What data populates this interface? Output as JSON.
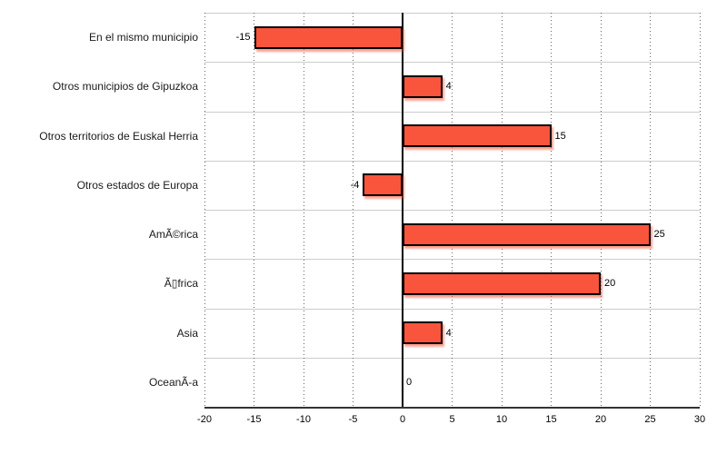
{
  "chart_data": {
    "type": "bar",
    "orientation": "horizontal",
    "title": "",
    "xlabel": "",
    "ylabel": "",
    "categories": [
      "En el mismo municipio",
      "Otros municipios de Gipuzkoa",
      "Otros territorios de Euskal Herria",
      "Otros estados de Europa",
      "AmÃ©rica",
      "Ã▯frica",
      "Asia",
      "OceanÃ-a"
    ],
    "values": [
      -15,
      4,
      15,
      -4,
      25,
      20,
      4,
      0
    ],
    "value_labels": [
      "-15",
      "4",
      "15",
      "-4",
      "25",
      "20",
      "4",
      "0"
    ],
    "xlim": [
      -20,
      30
    ],
    "xticks": [
      -20,
      -15,
      -10,
      -5,
      0,
      5,
      10,
      15,
      20,
      25,
      30
    ],
    "xtick_labels": [
      "-20",
      "-15",
      "-10",
      "-5",
      "0",
      "5",
      "10",
      "15",
      "20",
      "25",
      "30"
    ],
    "grid": "vertical dotted gridlines at every tick, light horizontal band separators",
    "legend": "none",
    "colors": {
      "bar_fill": "#f9553c",
      "bar_border": "#000000",
      "bar_shadow": "rgba(249,85,60,0.55)",
      "zero_line": "#000000",
      "axis_line": "#333333",
      "band_separator": "#cccccc",
      "grid_dots": "#666666",
      "text": "#000000",
      "background": "#ffffff"
    }
  }
}
